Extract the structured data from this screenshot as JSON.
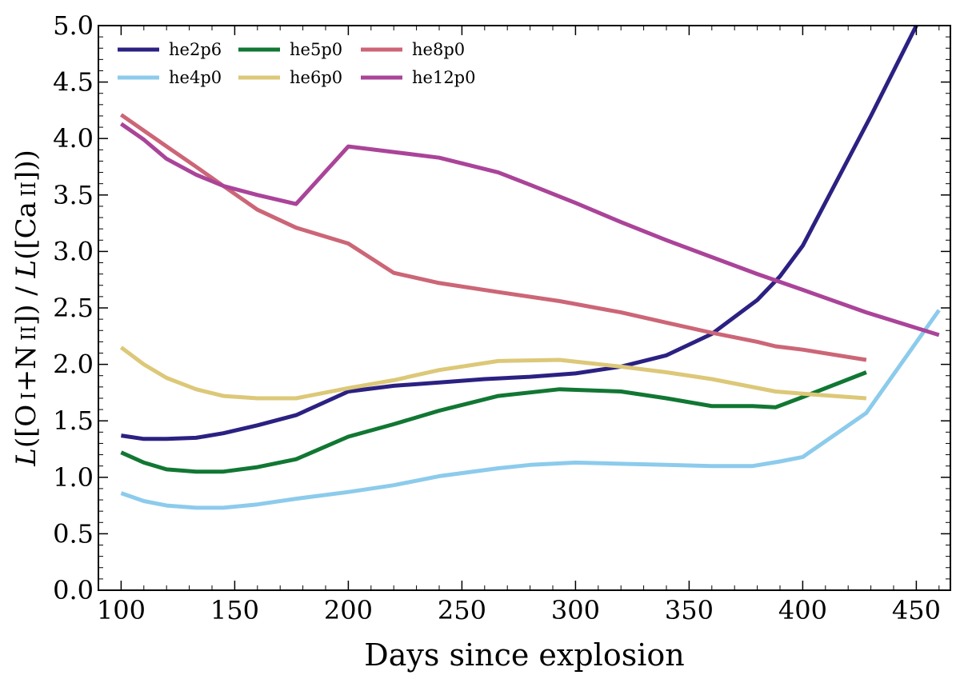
{
  "chart_data": {
    "type": "line",
    "xlabel": "Days since explosion",
    "ylabel": {
      "L": "L",
      "open1": "([O",
      "ion1": "I",
      "plus": "+N",
      "ion2": "II",
      "mid": "]) / ",
      "open2": "([Ca",
      "ion3": "II",
      "close": "]))"
    },
    "xlim": [
      90,
      465
    ],
    "ylim": [
      0.0,
      5.0
    ],
    "xticks": [
      100,
      150,
      200,
      250,
      300,
      350,
      400,
      450
    ],
    "yticks": [
      0.0,
      0.5,
      1.0,
      1.5,
      2.0,
      2.5,
      3.0,
      3.5,
      4.0,
      4.5,
      5.0
    ],
    "xtick_labels": [
      "100",
      "150",
      "200",
      "250",
      "300",
      "350",
      "400",
      "450"
    ],
    "ytick_labels": [
      "0.0",
      "0.5",
      "1.0",
      "1.5",
      "2.0",
      "2.5",
      "3.0",
      "3.5",
      "4.0",
      "4.5",
      "5.0"
    ],
    "legend_position": "top-left",
    "series": [
      {
        "name": "he2p6",
        "color": "#2b2182",
        "x": [
          100,
          110,
          120,
          133,
          145,
          160,
          177,
          200,
          220,
          240,
          260,
          280,
          300,
          320,
          340,
          360,
          380,
          390,
          400,
          430,
          450
        ],
        "y": [
          1.37,
          1.34,
          1.34,
          1.35,
          1.39,
          1.46,
          1.55,
          1.76,
          1.81,
          1.84,
          1.87,
          1.89,
          1.92,
          1.98,
          2.08,
          2.27,
          2.57,
          2.78,
          3.05,
          4.2,
          5.0
        ]
      },
      {
        "name": "he4p0",
        "color": "#8ccbec",
        "x": [
          100,
          110,
          120,
          133,
          145,
          160,
          177,
          200,
          220,
          240,
          266,
          280,
          300,
          320,
          340,
          360,
          378,
          390,
          400,
          428,
          460
        ],
        "y": [
          0.86,
          0.79,
          0.75,
          0.73,
          0.73,
          0.76,
          0.81,
          0.87,
          0.93,
          1.01,
          1.08,
          1.11,
          1.13,
          1.12,
          1.11,
          1.1,
          1.1,
          1.14,
          1.18,
          1.57,
          2.48
        ]
      },
      {
        "name": "he5p0",
        "color": "#117733",
        "x": [
          100,
          110,
          120,
          133,
          145,
          160,
          177,
          200,
          220,
          240,
          266,
          293,
          320,
          340,
          360,
          378,
          388,
          400,
          428
        ],
        "y": [
          1.22,
          1.13,
          1.07,
          1.05,
          1.05,
          1.09,
          1.16,
          1.36,
          1.47,
          1.59,
          1.72,
          1.78,
          1.76,
          1.7,
          1.63,
          1.63,
          1.62,
          1.71,
          1.93
        ]
      },
      {
        "name": "he6p0",
        "color": "#dcc878",
        "x": [
          100,
          110,
          120,
          133,
          145,
          160,
          177,
          200,
          220,
          240,
          266,
          293,
          320,
          340,
          360,
          388,
          400,
          428
        ],
        "y": [
          2.15,
          2.0,
          1.88,
          1.78,
          1.72,
          1.7,
          1.7,
          1.79,
          1.86,
          1.95,
          2.03,
          2.04,
          1.98,
          1.93,
          1.87,
          1.76,
          1.74,
          1.7
        ]
      },
      {
        "name": "he8p0",
        "color": "#cc6677",
        "x": [
          100,
          110,
          120,
          133,
          145,
          160,
          177,
          200,
          220,
          240,
          266,
          293,
          320,
          340,
          360,
          380,
          388,
          400,
          428
        ],
        "y": [
          4.21,
          4.07,
          3.93,
          3.75,
          3.58,
          3.37,
          3.21,
          3.07,
          2.81,
          2.72,
          2.64,
          2.56,
          2.46,
          2.37,
          2.28,
          2.2,
          2.16,
          2.13,
          2.04
        ]
      },
      {
        "name": "he12p0",
        "color": "#aa4499",
        "x": [
          100,
          110,
          120,
          133,
          145,
          160,
          177,
          200,
          220,
          240,
          266,
          280,
          300,
          320,
          340,
          360,
          380,
          400,
          428,
          460
        ],
        "y": [
          4.13,
          3.99,
          3.82,
          3.68,
          3.58,
          3.5,
          3.42,
          3.93,
          3.88,
          3.83,
          3.7,
          3.59,
          3.43,
          3.26,
          3.1,
          2.95,
          2.8,
          2.66,
          2.46,
          2.26
        ]
      }
    ]
  }
}
